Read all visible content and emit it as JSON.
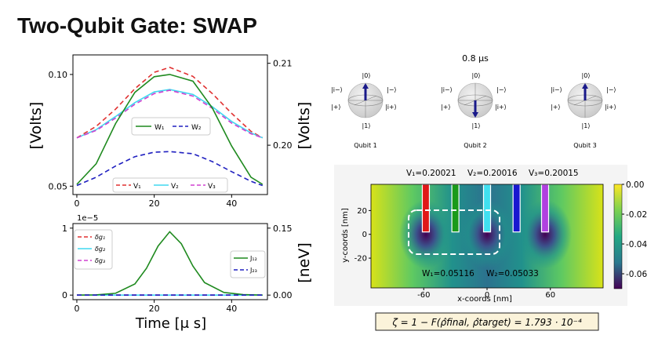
{
  "title": "Two-Qubit Gate: SWAP",
  "time_label": "0.8 μs",
  "chart_data": [
    {
      "type": "line",
      "name": "voltages",
      "x": [
        0,
        5,
        10,
        15,
        20,
        24,
        30,
        35,
        40,
        45,
        48
      ],
      "x_ticks": [
        "0",
        "20",
        "40"
      ],
      "ylabel_left": "[Volts]",
      "ylabel_right": "[Volts]",
      "ylim_left": [
        0.05,
        0.105
      ],
      "yticks_left": [
        "0.05",
        "0.10"
      ],
      "ylim_right": [
        0.195,
        0.21
      ],
      "yticks_right": [
        "0.20",
        "0.21"
      ],
      "series": [
        {
          "name": "V1",
          "legend": "V₁",
          "axis": "right",
          "color": "#e03030",
          "dash": "6,4",
          "values": [
            0.2009,
            0.2023,
            0.2044,
            0.2069,
            0.2089,
            0.2095,
            0.2084,
            0.2063,
            0.2039,
            0.2017,
            0.2009
          ]
        },
        {
          "name": "V2",
          "legend": "V₂",
          "axis": "right",
          "color": "#40d8f0",
          "dash": "",
          "values": [
            0.2009,
            0.2019,
            0.2035,
            0.2052,
            0.2065,
            0.2068,
            0.2062,
            0.2047,
            0.2029,
            0.2015,
            0.2009
          ]
        },
        {
          "name": "V3",
          "legend": "V₃",
          "axis": "right",
          "color": "#d040d0",
          "dash": "6,4",
          "values": [
            0.2009,
            0.2018,
            0.2033,
            0.205,
            0.2063,
            0.2067,
            0.206,
            0.2045,
            0.2027,
            0.2014,
            0.2009
          ]
        },
        {
          "name": "W1",
          "legend": "W₁",
          "axis": "left",
          "color": "#1f8a1f",
          "dash": "",
          "values": [
            0.0508,
            0.06,
            0.078,
            0.092,
            0.099,
            0.1,
            0.097,
            0.085,
            0.068,
            0.054,
            0.0508
          ]
        },
        {
          "name": "W2",
          "legend": "W₂",
          "axis": "left",
          "color": "#2020c0",
          "dash": "6,4",
          "values": [
            0.0503,
            0.054,
            0.059,
            0.0632,
            0.0652,
            0.0655,
            0.0645,
            0.061,
            0.0565,
            0.0522,
            0.0503
          ]
        }
      ]
    },
    {
      "type": "line",
      "name": "couplings",
      "x": [
        0,
        5,
        10,
        15,
        18,
        21,
        24,
        27,
        30,
        33,
        38,
        43,
        48
      ],
      "x_ticks": [
        "0",
        "20",
        "40"
      ],
      "xlabel": "Time [μ s]",
      "ylabel_right": "[neV]",
      "ylim_left": [
        0,
        1
      ],
      "yticks_left": [
        "0",
        "1"
      ],
      "left_scale": "1e−5",
      "ylim_right": [
        0,
        0.15
      ],
      "yticks_right": [
        "0.00",
        "0.15"
      ],
      "series": [
        {
          "name": "δg1",
          "legend": "δg₁",
          "axis": "left",
          "color": "#e03030",
          "dash": "6,4",
          "values": [
            0,
            0,
            0,
            0,
            0,
            0,
            0,
            0,
            0,
            0,
            0,
            0,
            0
          ]
        },
        {
          "name": "δg2",
          "legend": "δg₂",
          "axis": "left",
          "color": "#40d8f0",
          "dash": "",
          "values": [
            0,
            0,
            0,
            0,
            0,
            0,
            0,
            0,
            0,
            0,
            0,
            0,
            0
          ]
        },
        {
          "name": "δg3",
          "legend": "δg₃",
          "axis": "left",
          "color": "#d040d0",
          "dash": "6,4",
          "values": [
            0,
            0,
            0,
            0,
            0,
            0,
            0,
            0,
            0,
            0,
            0,
            0,
            0
          ]
        },
        {
          "name": "J12",
          "legend": "J₁₂",
          "axis": "right",
          "color": "#1f8a1f",
          "dash": "",
          "values": [
            0,
            0.0005,
            0.004,
            0.025,
            0.06,
            0.11,
            0.142,
            0.115,
            0.065,
            0.028,
            0.006,
            0.001,
            0
          ]
        },
        {
          "name": "J23",
          "legend": "J₂₃",
          "axis": "right",
          "color": "#2020c0",
          "dash": "6,4",
          "values": [
            0,
            0,
            0,
            0,
            0,
            0,
            0,
            0,
            0,
            0,
            0,
            0,
            0
          ]
        }
      ]
    },
    {
      "type": "heatmap",
      "name": "potential",
      "xlabel": "x-coords [nm]",
      "ylabel": "y-coords [nm]",
      "xlim": [
        -110,
        110
      ],
      "ylim": [
        -45,
        42
      ],
      "x_ticks": [
        "-60",
        "0",
        "60"
      ],
      "y_ticks": [
        "20",
        "0",
        "-20"
      ],
      "colorbar_ticks": [
        "0.00",
        "-0.02",
        "-0.04",
        "-0.06"
      ],
      "colorbar_range": [
        -0.07,
        0.0
      ],
      "gate_labels": {
        "V1": "V₁=0.20021",
        "V2": "V₂=0.20016",
        "V3": "V₃=0.20015",
        "W1": "W₁=0.05116",
        "W2": "W₂=0.05033"
      },
      "gates": [
        {
          "name": "V1",
          "x": -58,
          "color": "#e01818"
        },
        {
          "name": "W1",
          "x": -30,
          "color": "#1a9a1a"
        },
        {
          "name": "V2",
          "x": 0,
          "color": "#40e0f0"
        },
        {
          "name": "W2",
          "x": 28,
          "color": "#1818d0"
        },
        {
          "name": "V3",
          "x": 55,
          "color": "#b040e0"
        }
      ],
      "wells_x": [
        -58,
        0,
        55
      ]
    }
  ],
  "qubits": {
    "labels": [
      "Qubit 1",
      "Qubit 2",
      "Qubit 3"
    ],
    "states": [
      "up",
      "down",
      "up"
    ],
    "ket0": "|0⟩",
    "ket1": "|1⟩",
    "ket_minus": "|−⟩",
    "ket_plus": "|+⟩",
    "ket_i_minus": "|i−⟩",
    "ket_i_plus": "|i+⟩"
  },
  "fidelity": "ζ = 1 − F(ρ̂final, ρ̂target) = 1.793 · 10⁻⁴"
}
